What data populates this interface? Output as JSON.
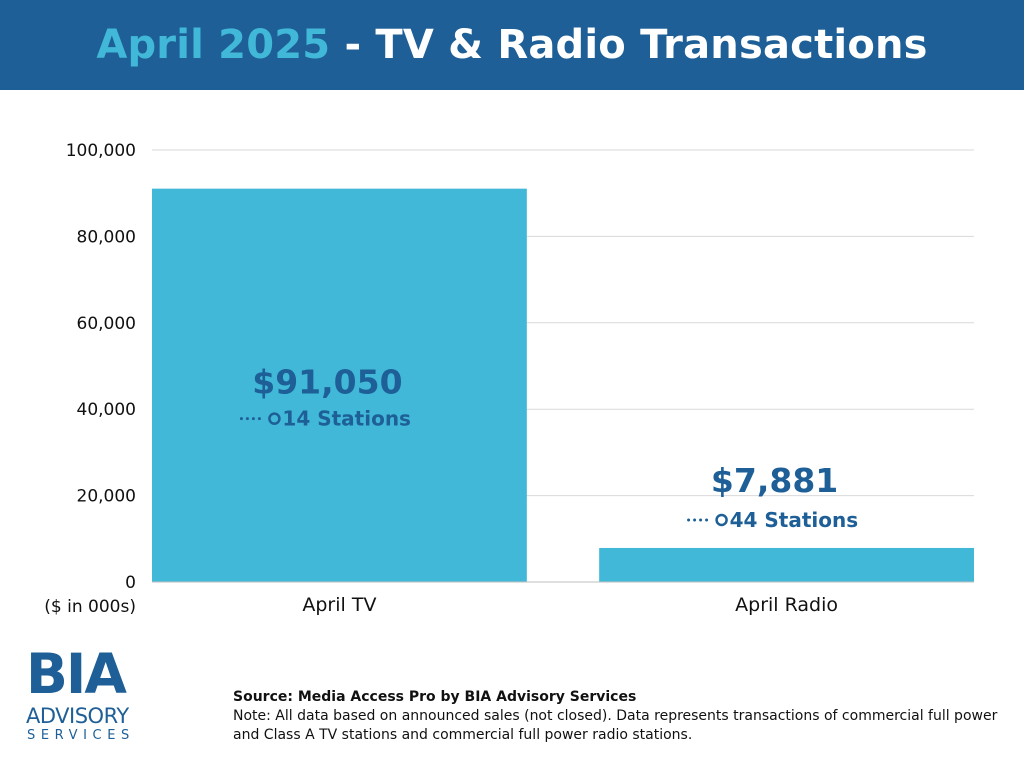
{
  "header": {
    "title_highlight": "April 2025",
    "title_rest": " - TV & Radio Transactions",
    "bg_color": "#1d5f96",
    "highlight_color": "#41b8d8"
  },
  "chart_data": {
    "type": "bar",
    "categories": [
      "April TV",
      "April Radio"
    ],
    "values": [
      91050,
      7881
    ],
    "value_labels": [
      "$91,050",
      "$7,881"
    ],
    "station_labels": [
      "14 Stations",
      "44 Stations"
    ],
    "ylabel": "($ in 000s)",
    "ylim": [
      0,
      100000
    ],
    "yticks": [
      0,
      20000,
      40000,
      60000,
      80000,
      100000
    ],
    "ytick_labels": [
      "0",
      "20,000",
      "40,000",
      "60,000",
      "80,000",
      "100,000"
    ],
    "grid": true,
    "bar_color": "#41b8d8",
    "label_color": "#1d5f96"
  },
  "logo": {
    "bia": "BIA",
    "advisory": "ADVISORY",
    "services": "SERVICES"
  },
  "footer": {
    "source": "Source: Media Access Pro by BIA Advisory Services",
    "note": "Note: All data based on announced sales (not closed).  Data represents transactions of commercial full power and Class A TV stations and commercial full power radio stations."
  }
}
